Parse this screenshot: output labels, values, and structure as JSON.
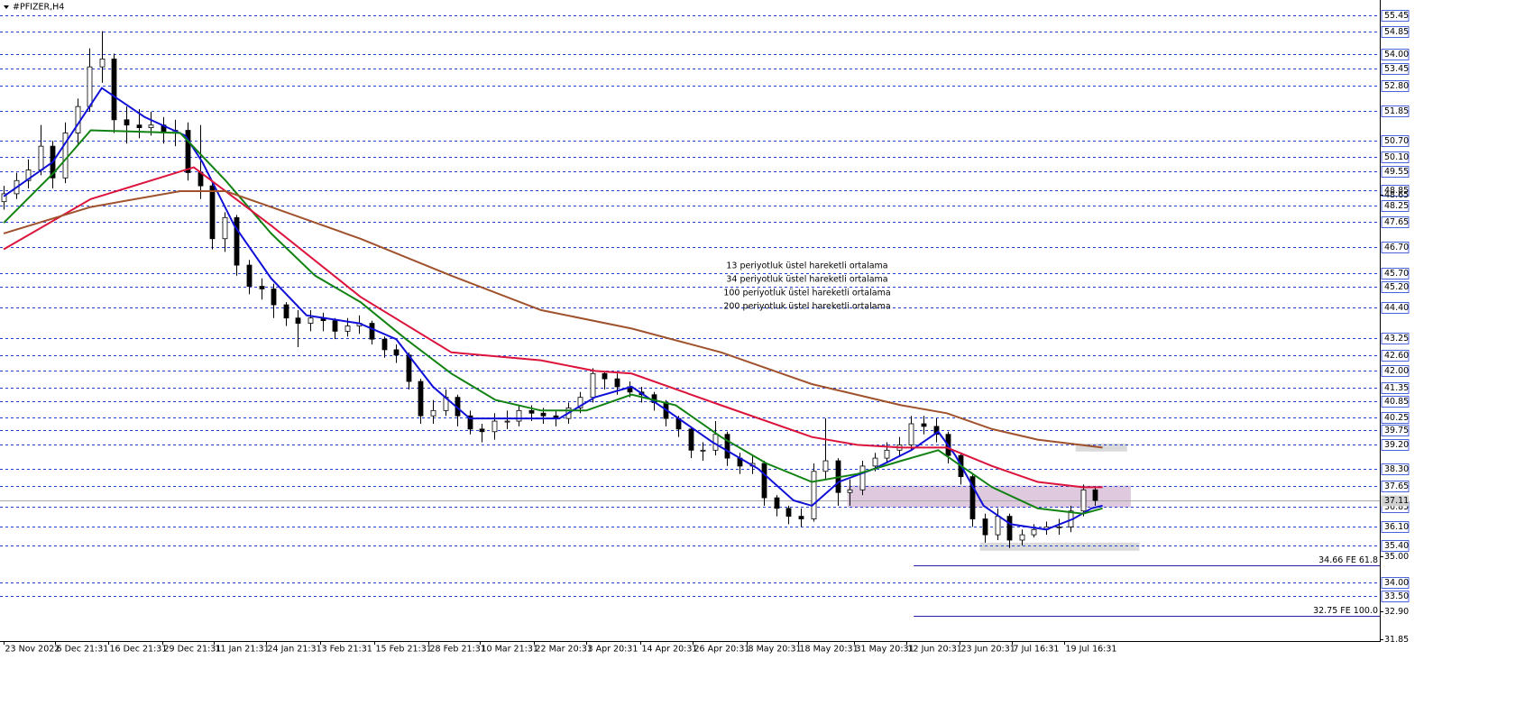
{
  "chart_data": {
    "type": "candlestick",
    "title": "#PFIZER,H4",
    "xlim": [
      -0.3,
      112.2
    ],
    "ylim": [
      31.78,
      56.03
    ],
    "xticks": [
      {
        "value": 0,
        "label": "23 Nov 2022"
      },
      {
        "value": 4.2,
        "label": "6 Dec 21:31"
      },
      {
        "value": 8.5,
        "label": "16 Dec 21:31"
      },
      {
        "value": 12.9,
        "label": "29 Dec 21:31"
      },
      {
        "value": 17.1,
        "label": "11 Jan 21:31"
      },
      {
        "value": 21.4,
        "label": "24 Jan 21:31"
      },
      {
        "value": 25.8,
        "label": "3 Feb 21:31"
      },
      {
        "value": 30.2,
        "label": "15 Feb 21:31"
      },
      {
        "value": 34.6,
        "label": "28 Feb 21:31"
      },
      {
        "value": 38.8,
        "label": "10 Mar 21:31"
      },
      {
        "value": 43.2,
        "label": "22 Mar 20:31"
      },
      {
        "value": 47.5,
        "label": "3 Apr 20:31"
      },
      {
        "value": 51.9,
        "label": "14 Apr 20:31"
      },
      {
        "value": 56.2,
        "label": "26 Apr 20:31"
      },
      {
        "value": 60.6,
        "label": "8 May 20:31"
      },
      {
        "value": 64.8,
        "label": "18 May 20:31"
      },
      {
        "value": 69.3,
        "label": "31 May 20:31"
      },
      {
        "value": 73.6,
        "label": "12 Jun 20:31"
      },
      {
        "value": 77.9,
        "label": "23 Jun 20:31"
      },
      {
        "value": 82.2,
        "label": "7 Jul 16:31"
      },
      {
        "value": 86.5,
        "label": "19 Jul 16:31"
      }
    ],
    "levels": [
      55.45,
      54.85,
      {
        "value": 54,
        "label": "54.00"
      },
      53.45,
      {
        "value": 52.8,
        "label": "52.80"
      },
      51.85,
      {
        "value": 50.7,
        "label": "50.70"
      },
      {
        "value": 50.1,
        "label": "50.10"
      },
      49.55,
      48.85,
      48.25,
      47.65,
      {
        "value": 46.7,
        "label": "46.70"
      },
      {
        "value": 45.7,
        "label": "45.70"
      },
      {
        "value": 45.2,
        "label": "45.20"
      },
      {
        "value": 44.4,
        "label": "44.40"
      },
      43.25,
      {
        "value": 42.6,
        "label": "42.60"
      },
      {
        "value": 42,
        "label": "42.00"
      },
      41.35,
      40.85,
      40.25,
      39.75,
      {
        "value": 39.2,
        "label": "39.20"
      },
      {
        "value": 38.3,
        "label": "38.30"
      },
      37.65,
      36.85,
      {
        "value": 36.1,
        "label": "36.10"
      },
      {
        "value": 35.4,
        "label": "35.40"
      },
      {
        "value": 34,
        "label": "34.00"
      },
      {
        "value": 33.5,
        "label": "33.50"
      }
    ],
    "yticks": [
      48.65,
      {
        "value": 35,
        "label": "35.00"
      },
      {
        "value": 32.9,
        "label": "32.90"
      },
      31.85
    ],
    "level_color": "#1f3fd0",
    "current_price": 37.11,
    "candles": {
      "open": [
        48.4,
        48.7,
        49.2,
        49.6,
        50.5,
        49.3,
        51.0,
        52.0,
        53.5,
        53.8,
        51.5,
        51.3,
        51.2,
        51.3,
        51.0,
        51.1,
        49.5,
        49.0,
        47.0,
        47.8,
        46.0,
        45.2,
        45.1,
        44.5,
        44.0,
        43.8,
        44.0,
        43.9,
        43.5,
        43.7,
        43.8,
        43.2,
        42.8,
        42.6,
        41.6,
        40.3,
        40.5,
        41.0,
        40.3,
        39.8,
        39.7,
        40.1,
        40.1,
        40.5,
        40.4,
        40.3,
        40.2,
        40.6,
        41.0,
        41.9,
        41.7,
        41.4,
        41.2,
        41.1,
        40.8,
        40.2,
        39.8,
        39.0,
        39.0,
        39.6,
        38.7,
        38.4,
        38.5,
        37.2,
        36.8,
        36.5,
        36.4,
        38.2,
        38.6,
        37.4,
        37.5,
        38.4,
        38.7,
        39.0,
        39.2,
        40.0,
        39.9,
        39.6,
        38.8,
        38.0,
        36.4,
        35.8,
        36.5,
        35.6,
        35.8,
        36.0,
        36.1,
        36.1,
        36.7,
        37.5
      ],
      "high": [
        49.0,
        49.5,
        50.0,
        51.3,
        50.7,
        51.4,
        52.3,
        54.2,
        54.85,
        54.0,
        52.0,
        51.9,
        51.8,
        51.6,
        51.5,
        51.4,
        51.3,
        49.2,
        48.0,
        47.9,
        46.2,
        45.5,
        45.3,
        44.6,
        44.3,
        44.3,
        44.2,
        44.0,
        44.0,
        44.1,
        43.9,
        43.3,
        43.0,
        42.7,
        41.7,
        40.9,
        41.3,
        41.1,
        40.5,
        40.0,
        40.4,
        40.5,
        40.7,
        40.7,
        40.6,
        40.5,
        40.8,
        41.2,
        42.1,
        42.0,
        41.9,
        41.6,
        41.4,
        41.2,
        40.9,
        40.3,
        39.9,
        39.3,
        40.1,
        39.7,
        38.9,
        38.8,
        38.6,
        37.3,
        36.9,
        36.8,
        38.5,
        40.2,
        38.7,
        37.9,
        38.6,
        38.9,
        39.3,
        39.5,
        40.3,
        40.3,
        40.2,
        39.7,
        38.9,
        38.1,
        36.6,
        36.8,
        36.6,
        36.0,
        36.2,
        36.3,
        36.4,
        36.9,
        37.7,
        37.6
      ],
      "low": [
        48.1,
        48.5,
        48.9,
        49.4,
        48.9,
        49.1,
        50.5,
        51.8,
        52.9,
        51.0,
        50.6,
        50.8,
        50.9,
        50.6,
        50.5,
        49.2,
        48.5,
        46.6,
        46.5,
        45.6,
        44.9,
        44.7,
        44.0,
        43.7,
        42.9,
        43.5,
        43.5,
        43.2,
        43.3,
        43.4,
        43.0,
        42.5,
        42.3,
        41.3,
        40.0,
        40.0,
        40.3,
        39.9,
        39.6,
        39.3,
        39.4,
        39.8,
        39.9,
        40.1,
        40.0,
        39.9,
        40.0,
        40.4,
        40.8,
        41.3,
        41.1,
        41.0,
        40.8,
        40.5,
        39.9,
        39.5,
        38.7,
        38.6,
        38.8,
        38.4,
        38.1,
        38.1,
        36.9,
        36.5,
        36.2,
        36.1,
        36.3,
        37.9,
        36.9,
        36.9,
        37.3,
        38.2,
        38.5,
        38.8,
        39.0,
        39.6,
        39.3,
        38.5,
        37.7,
        36.1,
        35.5,
        35.6,
        35.3,
        35.4,
        35.7,
        35.8,
        35.8,
        35.9,
        36.5,
        36.9
      ],
      "close": [
        48.7,
        49.2,
        49.6,
        50.5,
        49.3,
        51.0,
        52.0,
        53.5,
        53.8,
        51.5,
        51.3,
        51.2,
        51.3,
        51.0,
        51.1,
        49.5,
        49.0,
        47.0,
        47.8,
        46.0,
        45.2,
        45.1,
        44.5,
        44.0,
        43.8,
        44.0,
        43.9,
        43.5,
        43.7,
        43.8,
        43.2,
        42.8,
        42.6,
        41.6,
        40.3,
        40.5,
        41.0,
        40.3,
        39.8,
        39.7,
        40.1,
        40.1,
        40.5,
        40.4,
        40.3,
        40.2,
        40.6,
        41.0,
        41.9,
        41.7,
        41.4,
        41.2,
        41.1,
        40.8,
        40.2,
        39.8,
        39.0,
        39.0,
        39.6,
        38.7,
        38.4,
        38.5,
        37.2,
        36.8,
        36.5,
        36.4,
        38.2,
        38.6,
        37.4,
        37.5,
        38.4,
        38.7,
        39.0,
        39.2,
        40.0,
        39.9,
        39.6,
        38.8,
        38.0,
        36.4,
        35.8,
        36.5,
        35.6,
        35.8,
        36.0,
        36.1,
        36.1,
        36.7,
        37.5,
        37.1
      ]
    },
    "series": [
      {
        "name": "13 periyotluk üstel hareketli ortalama",
        "color": "#1010d8",
        "x": [
          0,
          4,
          8,
          11.5,
          14.8,
          16.2,
          18.8,
          21.8,
          24.7,
          29,
          32,
          35,
          38,
          41.6,
          45.3,
          48.2,
          51.2,
          54.1,
          57.8,
          61.5,
          64.4,
          65.9,
          68.1,
          71,
          74,
          76.2,
          77.6,
          79.9,
          82.1,
          85,
          87.2,
          88.7,
          89.6
        ],
        "values": [
          48.6,
          49.9,
          52.7,
          51.6,
          50.9,
          49.9,
          47.5,
          45.5,
          44.1,
          43.8,
          43.2,
          41.4,
          40.2,
          40.2,
          40.2,
          41.0,
          41.4,
          40.5,
          39.3,
          38.3,
          37.1,
          36.9,
          37.8,
          38.3,
          39.0,
          39.7,
          38.8,
          36.9,
          36.2,
          36.0,
          36.4,
          36.8,
          36.9
        ]
      },
      {
        "name": "34 periyotluk üstel hareketli ortalama",
        "color": "#128212",
        "x": [
          0,
          4.1,
          7.1,
          14.4,
          18.1,
          21.8,
          25.4,
          29.1,
          32.8,
          36.5,
          40.1,
          43.8,
          47.5,
          51.2,
          54.8,
          58.5,
          62.2,
          65.9,
          69.6,
          73.2,
          76.2,
          80.6,
          84.3,
          88,
          89.6
        ],
        "values": [
          47.6,
          49.5,
          51.1,
          51.0,
          49.2,
          47.2,
          45.6,
          44.6,
          43.2,
          41.9,
          40.9,
          40.5,
          40.5,
          41.1,
          40.7,
          39.5,
          38.5,
          37.8,
          38.1,
          38.6,
          39.0,
          37.6,
          36.8,
          36.6,
          36.8
        ]
      },
      {
        "name": "100 periyotluk üstel hareketli ortalama",
        "color": "#dc143c",
        "x": [
          0,
          7.1,
          15.5,
          21.8,
          29.1,
          36.5,
          43.8,
          48.2,
          51.2,
          58.5,
          65.9,
          69.6,
          73.2,
          76.9,
          80.6,
          84.3,
          88,
          89.6
        ],
        "values": [
          46.6,
          48.5,
          49.7,
          47.5,
          44.8,
          42.7,
          42.4,
          42.0,
          41.9,
          40.7,
          39.5,
          39.2,
          39.1,
          39.1,
          38.4,
          37.8,
          37.6,
          37.6
        ]
      },
      {
        "name": "200 periyotluk üstel hareketli ortalama",
        "color": "#a0522d",
        "x": [
          0,
          7.1,
          14.4,
          18.1,
          21.8,
          29.1,
          36.5,
          43.8,
          51.2,
          58.5,
          65.9,
          73.2,
          76.9,
          80.6,
          84.3,
          89.6
        ],
        "values": [
          47.2,
          48.2,
          48.8,
          48.8,
          48.2,
          47.0,
          45.6,
          44.3,
          43.6,
          42.7,
          41.5,
          40.7,
          40.4,
          39.8,
          39.4,
          39.1
        ]
      }
    ],
    "zones": [
      {
        "x": [
          68.8,
          91.9
        ],
        "y": [
          36.84,
          37.66
        ],
        "color": "#d8bfd8"
      },
      {
        "x": [
          87.4,
          91.6
        ],
        "y": [
          38.95,
          39.25
        ],
        "color": "#d3d3d3"
      },
      {
        "x": [
          79.6,
          92.6
        ],
        "y": [
          35.2,
          35.5
        ],
        "color": "#d3d3d3"
      }
    ],
    "annotations": [
      {
        "label": "34.66 FE 61.8",
        "value": 34.66,
        "x": 74.2
      },
      {
        "label": "32.75 FE 100.0",
        "value": 32.75,
        "x": 74.2
      }
    ]
  }
}
